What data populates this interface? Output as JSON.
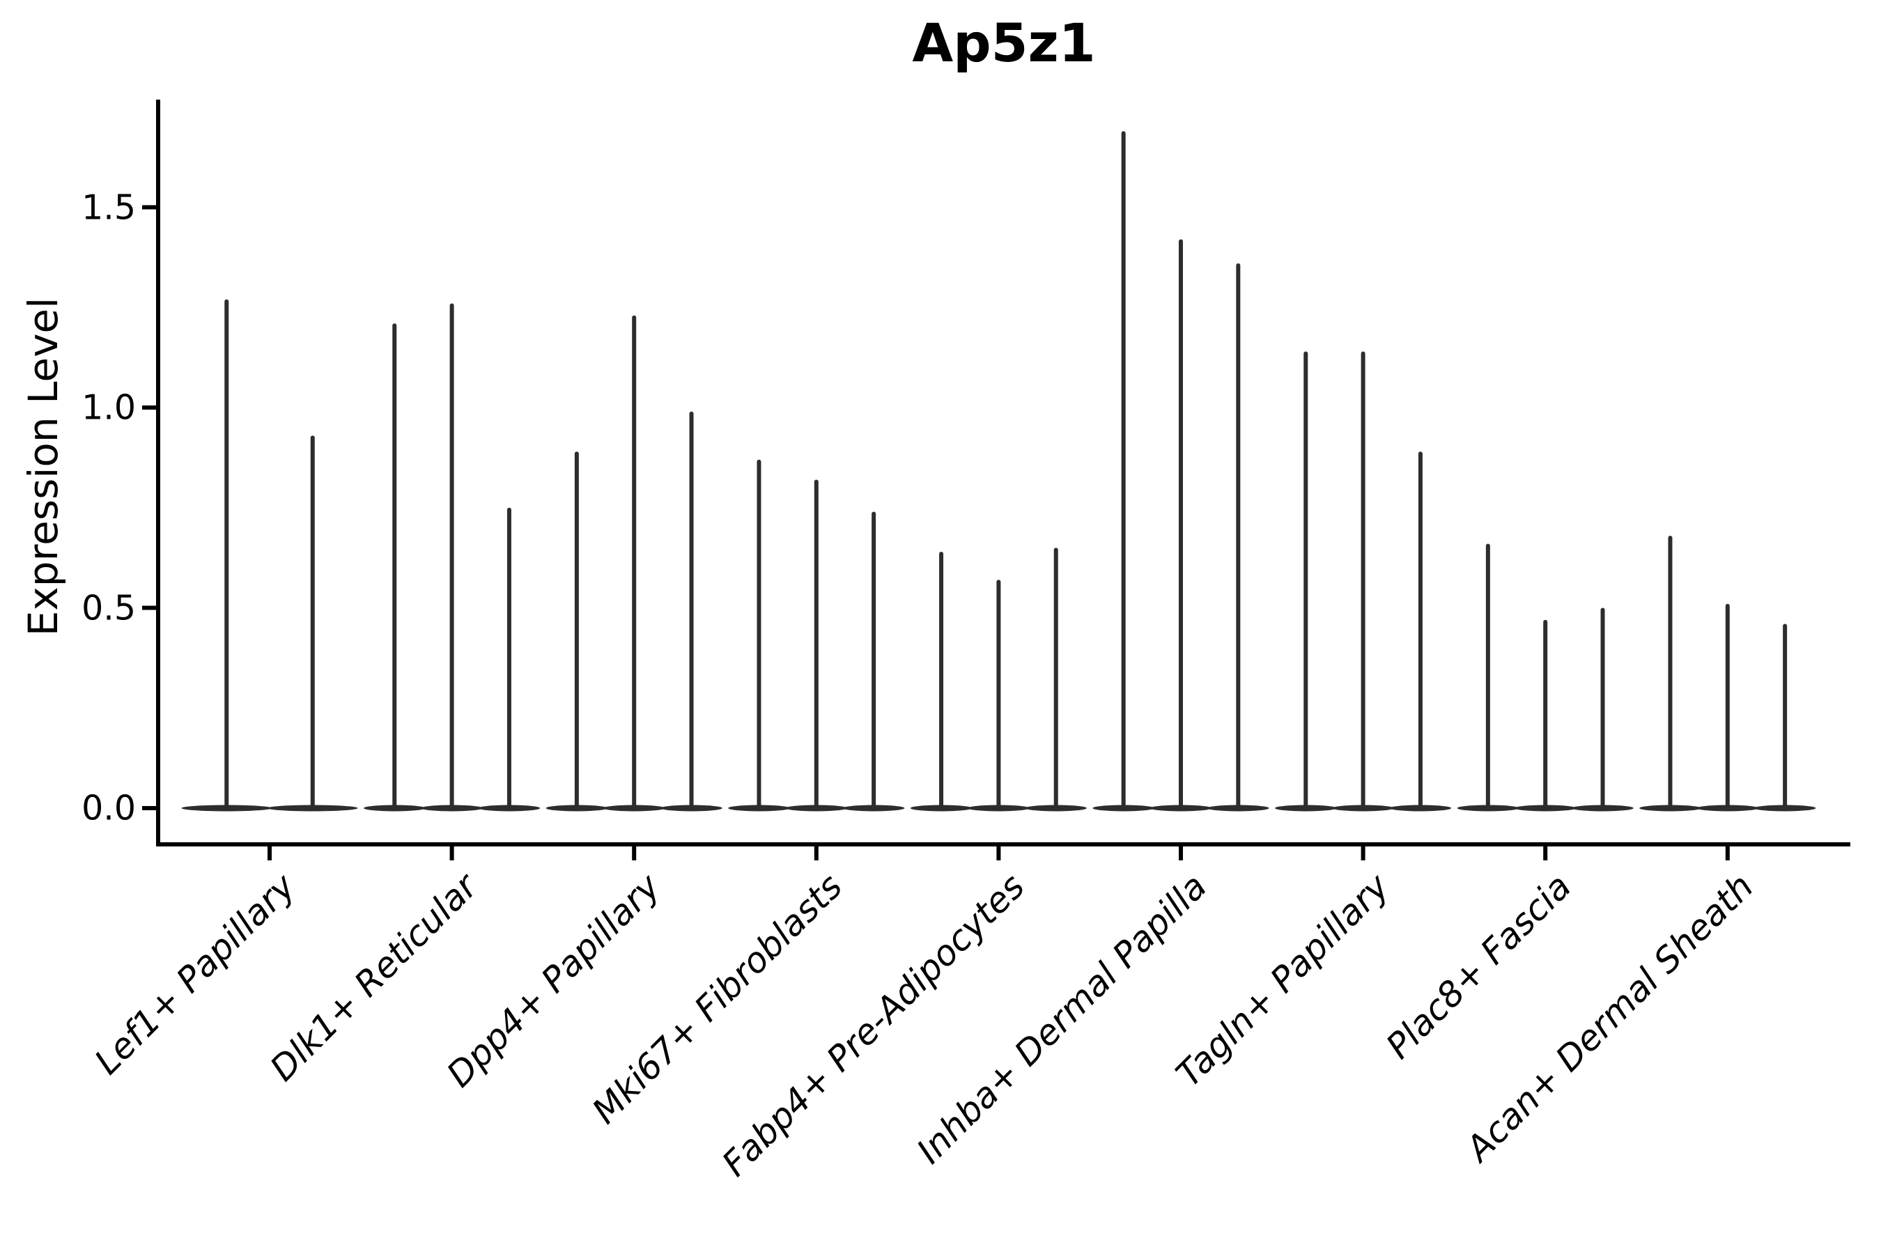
{
  "figure": {
    "title": "Ap5z1",
    "ylabel": "Expression Level"
  },
  "chart_data": {
    "type": "violin",
    "title": "Ap5z1",
    "xlabel": "",
    "ylabel": "Expression Level",
    "ylim": [
      -0.09,
      1.77
    ],
    "ytick_values": [
      0.0,
      0.5,
      1.0,
      1.5
    ],
    "ytick_labels": [
      "0.0",
      "0.5",
      "1.0",
      "1.5"
    ],
    "grid": false,
    "legend": null,
    "style_note": "Sparse single-cell expression violins: each violin is collapsed into a flat body at 0 with a thin vertical spike reaching the maximum expression value",
    "categories": [
      "Lef1+ Papillary",
      "Dlk1+ Reticular",
      "Dpp4+ Papillary",
      "Mki67+ Fibroblasts",
      "Fabp4+ Pre-Adipocytes",
      "Inhba+ Dermal Papilla",
      "Tagln+ Papillary",
      "Plac8+ Fascia",
      "Acan+ Dermal Sheath"
    ],
    "series": [
      {
        "category": "Lef1+ Papillary",
        "violin_spike_maxima": [
          1.27,
          0.93
        ]
      },
      {
        "category": "Dlk1+ Reticular",
        "violin_spike_maxima": [
          1.21,
          1.26,
          0.75
        ]
      },
      {
        "category": "Dpp4+ Papillary",
        "violin_spike_maxima": [
          0.89,
          1.23,
          0.99
        ]
      },
      {
        "category": "Mki67+ Fibroblasts",
        "violin_spike_maxima": [
          0.87,
          0.82,
          0.74
        ]
      },
      {
        "category": "Fabp4+ Pre-Adipocytes",
        "violin_spike_maxima": [
          0.64,
          0.57,
          0.65
        ]
      },
      {
        "category": "Inhba+ Dermal Papilla",
        "violin_spike_maxima": [
          1.69,
          1.42,
          1.36
        ]
      },
      {
        "category": "Tagln+ Papillary",
        "violin_spike_maxima": [
          1.14,
          1.14,
          0.89
        ]
      },
      {
        "category": "Plac8+ Fascia",
        "violin_spike_maxima": [
          0.66,
          0.47,
          0.5
        ]
      },
      {
        "category": "Acan+ Dermal Sheath",
        "violin_spike_maxima": [
          0.68,
          0.51,
          0.46
        ]
      }
    ],
    "colors": {
      "violin": "#2d2d2d",
      "axis": "#000000",
      "text": "#000000",
      "background": "#ffffff"
    }
  }
}
